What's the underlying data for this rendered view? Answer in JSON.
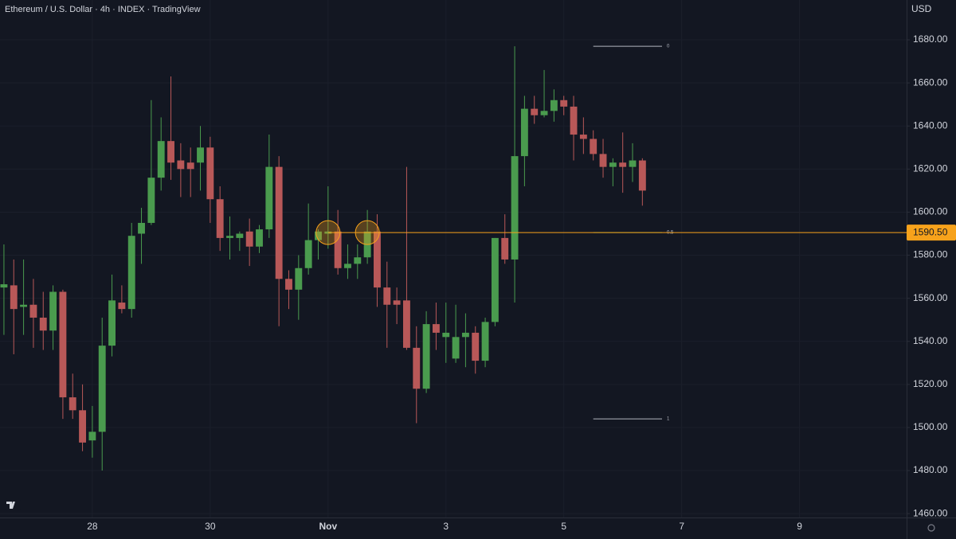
{
  "chart_data": {
    "type": "candlestick",
    "title": "Ethereum / U.S. Dollar · 4h · INDEX · TradingView",
    "currency": "USD",
    "up_color": "#4a9b4e",
    "down_color": "#b85858",
    "xlim": [
      -0.4,
      91.9
    ],
    "xticks": [
      {
        "value": 9,
        "label": "28"
      },
      {
        "value": 21,
        "label": "30"
      },
      {
        "value": 33,
        "label": "Nov"
      },
      {
        "value": 45,
        "label": "3"
      },
      {
        "value": 57,
        "label": "5"
      },
      {
        "value": 69,
        "label": "7"
      },
      {
        "value": 81,
        "label": "9"
      }
    ],
    "ylim": [
      1458.2,
      1698.5
    ],
    "yticks": [
      {
        "value": 1460,
        "label": "1460.00"
      },
      {
        "value": 1480,
        "label": "1480.00"
      },
      {
        "value": 1500,
        "label": "1500.00"
      },
      {
        "value": 1520,
        "label": "1520.00"
      },
      {
        "value": 1540,
        "label": "1540.00"
      },
      {
        "value": 1560,
        "label": "1560.00"
      },
      {
        "value": 1580,
        "label": "1580.00"
      },
      {
        "value": 1600,
        "label": "1600.00"
      },
      {
        "value": 1620,
        "label": "1620.00"
      },
      {
        "value": 1640,
        "label": "1640.00"
      },
      {
        "value": 1660,
        "label": "1660.00"
      },
      {
        "value": 1680,
        "label": "1680.00"
      }
    ],
    "open": [
      1565,
      1566,
      1556,
      1557,
      1551,
      1545,
      1563,
      1514,
      1508,
      1494,
      1498,
      1538,
      1558,
      1555,
      1590,
      1595,
      1616,
      1633,
      1624,
      1623,
      1623,
      1630,
      1606,
      1588,
      1588,
      1591,
      1584,
      1592,
      1621,
      1569,
      1564,
      1574,
      1587,
      1590,
      1591,
      1574,
      1576,
      1579,
      1591,
      1565,
      1559,
      1559,
      1537,
      1518,
      1548,
      1542,
      1532,
      1542,
      1544,
      1531,
      1549,
      1588,
      1578,
      1626,
      1648,
      1645,
      1647,
      1652,
      1649,
      1636,
      1634,
      1627,
      1621,
      1623,
      1621,
      1624
    ],
    "high": [
      1585,
      1578,
      1578,
      1569,
      1563,
      1566,
      1564,
      1525,
      1520,
      1510,
      1551,
      1571,
      1566,
      1595,
      1602,
      1652,
      1644,
      1663,
      1632,
      1630,
      1640,
      1635,
      1612,
      1598,
      1591,
      1597,
      1594,
      1636,
      1626,
      1573,
      1580,
      1604,
      1592,
      1612,
      1601,
      1585,
      1585,
      1601,
      1599,
      1577,
      1565,
      1621,
      1547,
      1554,
      1558,
      1558,
      1557,
      1553,
      1547,
      1551,
      1588,
      1599,
      1677,
      1654,
      1654,
      1666,
      1657,
      1654,
      1654,
      1644,
      1638,
      1634,
      1625,
      1637,
      1632,
      1625
    ],
    "low": [
      1543,
      1534,
      1543,
      1537,
      1536,
      1536,
      1504,
      1504,
      1489,
      1486,
      1480,
      1533,
      1553,
      1551,
      1576,
      1594,
      1610,
      1615,
      1607,
      1607,
      1610,
      1595,
      1582,
      1578,
      1582,
      1575,
      1581,
      1588,
      1547,
      1555,
      1550,
      1571,
      1578,
      1583,
      1571,
      1569,
      1569,
      1576,
      1556,
      1537,
      1548,
      1536,
      1502,
      1516,
      1536,
      1530,
      1530,
      1528,
      1525,
      1528,
      1547,
      1576,
      1558,
      1612,
      1641,
      1644,
      1642,
      1645,
      1624,
      1627,
      1624,
      1616,
      1612,
      1609,
      1614,
      1603
    ],
    "close": [
      1566.5,
      1555,
      1557,
      1551,
      1545,
      1563,
      1514,
      1508,
      1493,
      1498,
      1538,
      1559,
      1555,
      1589,
      1595,
      1616,
      1633,
      1623,
      1620,
      1620,
      1630,
      1606,
      1588,
      1589,
      1590,
      1584,
      1592,
      1621,
      1569,
      1564,
      1574,
      1587,
      1591,
      1591,
      1574,
      1576,
      1579,
      1591,
      1565,
      1557,
      1557,
      1537,
      1518,
      1548,
      1544,
      1544,
      1542,
      1544,
      1531,
      1549,
      1588,
      1578,
      1626,
      1648,
      1645,
      1647,
      1652,
      1649,
      1636,
      1634,
      1627,
      1621,
      1623,
      1621,
      1624,
      1610
    ],
    "price_line": {
      "value": 1590.5,
      "label": "1590.50",
      "color": "#f7a21b"
    },
    "markers": [
      {
        "x": 33,
        "y": 1590.5
      },
      {
        "x": 37,
        "y": 1590.5
      }
    ],
    "fib": {
      "x_range": [
        60,
        67
      ],
      "levels": [
        {
          "ratio": 0,
          "value": 1677
        },
        {
          "ratio": 0.5,
          "value": 1590.5
        },
        {
          "ratio": 1,
          "value": 1504
        }
      ]
    }
  }
}
